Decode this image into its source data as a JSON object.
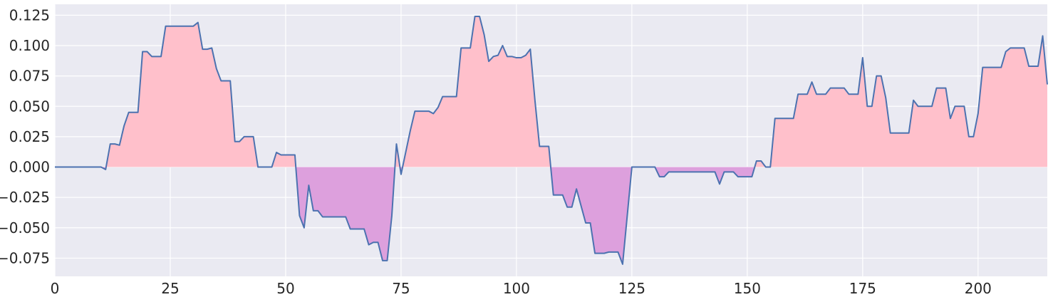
{
  "chart_data": {
    "type": "area",
    "title": "",
    "xlabel": "",
    "ylabel": "",
    "xlim": [
      0,
      215
    ],
    "ylim": [
      -0.09,
      0.134
    ],
    "grid": true,
    "background_color": "#eaeaf2",
    "line_color": "#4c72b0",
    "positive_fill_color": "#ffc0cb",
    "negative_fill_color": "#dda0dd",
    "x_ticks": [
      {
        "value": 0,
        "label": "0"
      },
      {
        "value": 25,
        "label": "25"
      },
      {
        "value": 50,
        "label": "50"
      },
      {
        "value": 75,
        "label": "75"
      },
      {
        "value": 100,
        "label": "100"
      },
      {
        "value": 125,
        "label": "125"
      },
      {
        "value": 150,
        "label": "150"
      },
      {
        "value": 175,
        "label": "175"
      },
      {
        "value": 200,
        "label": "200"
      }
    ],
    "y_ticks": [
      {
        "value": 0.125,
        "label": "0.125"
      },
      {
        "value": 0.1,
        "label": "0.100"
      },
      {
        "value": 0.075,
        "label": "0.075"
      },
      {
        "value": 0.05,
        "label": "0.050"
      },
      {
        "value": 0.025,
        "label": "0.025"
      },
      {
        "value": 0.0,
        "label": "0.000"
      },
      {
        "value": -0.025,
        "label": "−0.025"
      },
      {
        "value": -0.05,
        "label": "−0.050"
      },
      {
        "value": -0.075,
        "label": "−0.075"
      }
    ],
    "series": [
      {
        "x": [
          0,
          1,
          2,
          3,
          4,
          5,
          6,
          7,
          8,
          9,
          10,
          11,
          12,
          13,
          14,
          15,
          16,
          17,
          18,
          19,
          20,
          21,
          22,
          23,
          24,
          25,
          26,
          27,
          28,
          29,
          30,
          31,
          32,
          33,
          34,
          35,
          36,
          37,
          38,
          39,
          40,
          41,
          42,
          43,
          44,
          45,
          46,
          47,
          48,
          49,
          50,
          51,
          52,
          53,
          54,
          55,
          56,
          57,
          58,
          59,
          60,
          61,
          62,
          63,
          64,
          65,
          66,
          67,
          68,
          69,
          70,
          71,
          72,
          73,
          74,
          75,
          76,
          77,
          78,
          79,
          80,
          81,
          82,
          83,
          84,
          85,
          86,
          87,
          88,
          89,
          90,
          91,
          92,
          93,
          94,
          95,
          96,
          97,
          98,
          99,
          100,
          101,
          102,
          103,
          104,
          105,
          106,
          107,
          108,
          109,
          110,
          111,
          112,
          113,
          114,
          115,
          116,
          117,
          118,
          119,
          120,
          121,
          122,
          123,
          124,
          125,
          126,
          127,
          128,
          129,
          130,
          131,
          132,
          133,
          134,
          135,
          136,
          137,
          138,
          139,
          140,
          141,
          142,
          143,
          144,
          145,
          146,
          147,
          148,
          149,
          150,
          151,
          152,
          153,
          154,
          155,
          156,
          157,
          158,
          159,
          160,
          161,
          162,
          163,
          164,
          165,
          166,
          167,
          168,
          169,
          170,
          171,
          172,
          173,
          174,
          175,
          176,
          177,
          178,
          179,
          180,
          181,
          182,
          183,
          184,
          185,
          186,
          187,
          188,
          189,
          190,
          191,
          192,
          193,
          194,
          195,
          196,
          197,
          198,
          199,
          200,
          201,
          202,
          203,
          204,
          205,
          206,
          207,
          208,
          209,
          210,
          211,
          212,
          213,
          214,
          215
        ],
        "y": [
          0,
          0,
          0,
          0,
          0,
          0,
          0,
          0,
          0,
          0,
          0,
          -0.002,
          0.019,
          0.019,
          0.018,
          0.034,
          0.045,
          0.045,
          0.045,
          0.095,
          0.095,
          0.091,
          0.091,
          0.091,
          0.116,
          0.116,
          0.116,
          0.116,
          0.116,
          0.116,
          0.116,
          0.119,
          0.097,
          0.097,
          0.098,
          0.081,
          0.071,
          0.071,
          0.071,
          0.021,
          0.021,
          0.025,
          0.025,
          0.025,
          0,
          0,
          0,
          0,
          0.012,
          0.01,
          0.01,
          0.01,
          0.01,
          -0.04,
          -0.05,
          -0.015,
          -0.036,
          -0.036,
          -0.041,
          -0.041,
          -0.041,
          -0.041,
          -0.041,
          -0.041,
          -0.051,
          -0.051,
          -0.051,
          -0.051,
          -0.064,
          -0.062,
          -0.062,
          -0.077,
          -0.077,
          -0.04,
          0.019,
          -0.006,
          0.012,
          0.03,
          0.046,
          0.046,
          0.046,
          0.046,
          0.044,
          0.049,
          0.058,
          0.058,
          0.058,
          0.058,
          0.098,
          0.098,
          0.098,
          0.124,
          0.124,
          0.109,
          0.087,
          0.091,
          0.092,
          0.1,
          0.091,
          0.091,
          0.09,
          0.09,
          0.092,
          0.097,
          0.055,
          0.017,
          0.017,
          0.017,
          -0.023,
          -0.023,
          -0.023,
          -0.033,
          -0.033,
          -0.018,
          -0.032,
          -0.046,
          -0.046,
          -0.071,
          -0.071,
          -0.071,
          -0.07,
          -0.07,
          -0.07,
          -0.08,
          -0.04,
          0,
          0,
          0,
          0,
          0,
          0,
          -0.008,
          -0.008,
          -0.004,
          -0.004,
          -0.004,
          -0.004,
          -0.004,
          -0.004,
          -0.004,
          -0.004,
          -0.004,
          -0.004,
          -0.004,
          -0.014,
          -0.004,
          -0.004,
          -0.004,
          -0.008,
          -0.008,
          -0.008,
          -0.008,
          0.005,
          0.005,
          0,
          0,
          0.04,
          0.04,
          0.04,
          0.04,
          0.04,
          0.06,
          0.06,
          0.06,
          0.07,
          0.06,
          0.06,
          0.06,
          0.065,
          0.065,
          0.065,
          0.065,
          0.06,
          0.06,
          0.06,
          0.09,
          0.05,
          0.05,
          0.075,
          0.075,
          0.057,
          0.028,
          0.028,
          0.028,
          0.028,
          0.028,
          0.055,
          0.05,
          0.05,
          0.05,
          0.05,
          0.065,
          0.065,
          0.065,
          0.04,
          0.05,
          0.05,
          0.05,
          0.025,
          0.025,
          0.044,
          0.082,
          0.082,
          0.082,
          0.082,
          0.082,
          0.095,
          0.098,
          0.098,
          0.098,
          0.098,
          0.083,
          0.083,
          0.083,
          0.108,
          0.068
        ]
      }
    ]
  }
}
